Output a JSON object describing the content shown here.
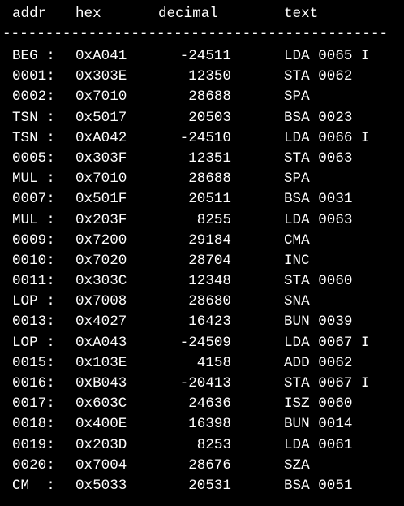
{
  "header": {
    "addr": "addr",
    "hex": "hex",
    "decimal": "decimal",
    "text": "text"
  },
  "separator": "---------------------------------------------",
  "rows": [
    {
      "addr": "BEG :",
      "hex": "0xA041",
      "decimal": "-24511",
      "text": "LDA 0065 I"
    },
    {
      "addr": "0001:",
      "hex": "0x303E",
      "decimal": "12350",
      "text": "STA 0062"
    },
    {
      "addr": "0002:",
      "hex": "0x7010",
      "decimal": "28688",
      "text": "SPA"
    },
    {
      "addr": "TSN :",
      "hex": "0x5017",
      "decimal": "20503",
      "text": "BSA 0023"
    },
    {
      "addr": "TSN :",
      "hex": "0xA042",
      "decimal": "-24510",
      "text": "LDA 0066 I"
    },
    {
      "addr": "0005:",
      "hex": "0x303F",
      "decimal": "12351",
      "text": "STA 0063"
    },
    {
      "addr": "MUL :",
      "hex": "0x7010",
      "decimal": "28688",
      "text": "SPA"
    },
    {
      "addr": "0007:",
      "hex": "0x501F",
      "decimal": "20511",
      "text": "BSA 0031"
    },
    {
      "addr": "MUL :",
      "hex": "0x203F",
      "decimal": "8255",
      "text": "LDA 0063"
    },
    {
      "addr": "0009:",
      "hex": "0x7200",
      "decimal": "29184",
      "text": "CMA"
    },
    {
      "addr": "0010:",
      "hex": "0x7020",
      "decimal": "28704",
      "text": "INC"
    },
    {
      "addr": "0011:",
      "hex": "0x303C",
      "decimal": "12348",
      "text": "STA 0060"
    },
    {
      "addr": "LOP :",
      "hex": "0x7008",
      "decimal": "28680",
      "text": "SNA"
    },
    {
      "addr": "0013:",
      "hex": "0x4027",
      "decimal": "16423",
      "text": "BUN 0039"
    },
    {
      "addr": "LOP :",
      "hex": "0xA043",
      "decimal": "-24509",
      "text": "LDA 0067 I"
    },
    {
      "addr": "0015:",
      "hex": "0x103E",
      "decimal": "4158",
      "text": "ADD 0062"
    },
    {
      "addr": "0016:",
      "hex": "0xB043",
      "decimal": "-20413",
      "text": "STA 0067 I"
    },
    {
      "addr": "0017:",
      "hex": "0x603C",
      "decimal": "24636",
      "text": "ISZ 0060"
    },
    {
      "addr": "0018:",
      "hex": "0x400E",
      "decimal": "16398",
      "text": "BUN 0014"
    },
    {
      "addr": "0019:",
      "hex": "0x203D",
      "decimal": "8253",
      "text": "LDA 0061"
    },
    {
      "addr": "0020:",
      "hex": "0x7004",
      "decimal": "28676",
      "text": "SZA"
    },
    {
      "addr": "CM  :",
      "hex": "0x5033",
      "decimal": "20531",
      "text": "BSA 0051"
    }
  ]
}
